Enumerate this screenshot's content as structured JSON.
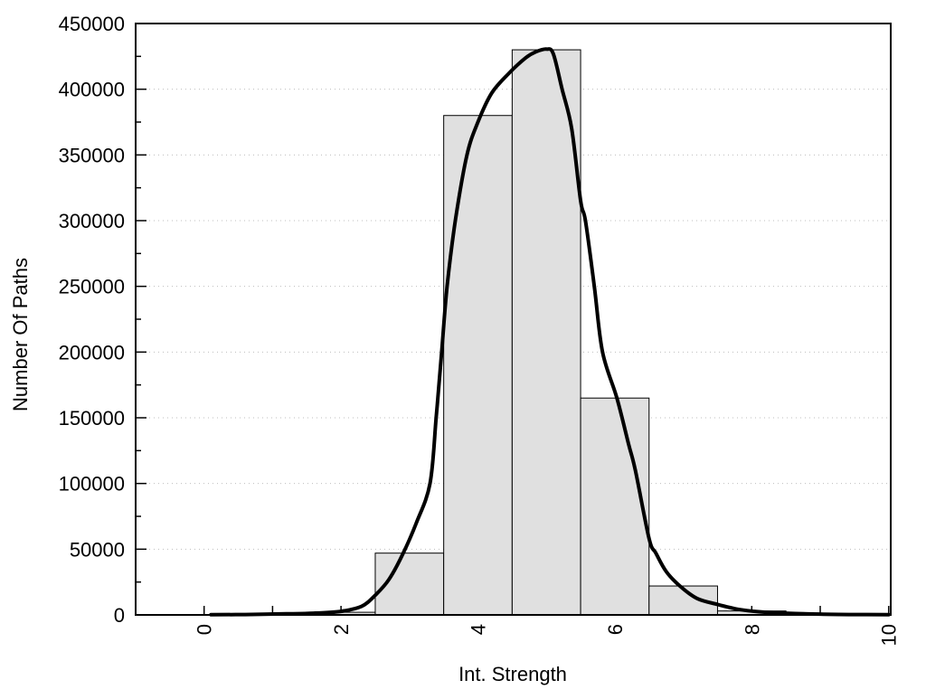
{
  "chart_data": {
    "type": "bar",
    "subtype": "histogram-with-smooth-curve",
    "title": "",
    "xlabel": "Int. Strength",
    "ylabel": "Number Of Paths",
    "xlim": [
      -1.0,
      10.03
    ],
    "ylim": [
      0,
      450000
    ],
    "x_major_ticks": [
      0,
      2,
      4,
      6,
      8,
      10
    ],
    "x_minor_ticks": [
      1,
      3,
      5,
      7,
      9
    ],
    "y_ticks": [
      0,
      50000,
      100000,
      150000,
      200000,
      250000,
      300000,
      350000,
      400000,
      450000
    ],
    "y_minor_step": 25000,
    "grid": {
      "horizontal": true,
      "style": "dotted",
      "at_each": 50000
    },
    "x_tick_labels_rotated_degrees": -90,
    "bars": [
      {
        "x0": 1.5,
        "x1": 2.5,
        "value": 2000
      },
      {
        "x0": 2.5,
        "x1": 3.5,
        "value": 47000
      },
      {
        "x0": 3.5,
        "x1": 4.5,
        "value": 380000
      },
      {
        "x0": 4.5,
        "x1": 5.5,
        "value": 430000
      },
      {
        "x0": 5.5,
        "x1": 6.5,
        "value": 165000
      },
      {
        "x0": 6.5,
        "x1": 7.5,
        "value": 22000
      },
      {
        "x0": 7.5,
        "x1": 8.5,
        "value": 3000
      }
    ],
    "curve_points": [
      [
        0.1,
        150
      ],
      [
        0.6,
        300
      ],
      [
        1.2,
        800
      ],
      [
        1.6,
        1300
      ],
      [
        2.0,
        2700
      ],
      [
        2.3,
        6500
      ],
      [
        2.5,
        15000
      ],
      [
        2.7,
        27000
      ],
      [
        2.9,
        46000
      ],
      [
        3.1,
        70000
      ],
      [
        3.3,
        100000
      ],
      [
        3.39,
        150000
      ],
      [
        3.47,
        200000
      ],
      [
        3.55,
        250000
      ],
      [
        3.67,
        300000
      ],
      [
        3.84,
        350000
      ],
      [
        4.0,
        375000
      ],
      [
        4.2,
        397000
      ],
      [
        4.45,
        412000
      ],
      [
        4.7,
        424000
      ],
      [
        4.85,
        428500
      ],
      [
        5.0,
        430500
      ],
      [
        5.1,
        427000
      ],
      [
        5.23,
        400000
      ],
      [
        5.37,
        370000
      ],
      [
        5.5,
        315000
      ],
      [
        5.57,
        300000
      ],
      [
        5.7,
        250000
      ],
      [
        5.82,
        200000
      ],
      [
        6.03,
        165000
      ],
      [
        6.2,
        130000
      ],
      [
        6.3,
        110000
      ],
      [
        6.5,
        58000
      ],
      [
        6.6,
        47000
      ],
      [
        6.75,
        33000
      ],
      [
        6.95,
        22000
      ],
      [
        7.2,
        12500
      ],
      [
        7.5,
        8000
      ],
      [
        7.8,
        4300
      ],
      [
        8.1,
        2400
      ],
      [
        8.5,
        1300
      ],
      [
        9.0,
        600
      ],
      [
        9.5,
        300
      ],
      [
        10.0,
        180
      ]
    ],
    "colors": {
      "background": "#ffffff",
      "bar_fill": "#e0e0e0",
      "bar_border": "#000000",
      "curve": "#000000",
      "grid": "#bdbdbd",
      "axis": "#000000",
      "text": "#000000"
    }
  }
}
